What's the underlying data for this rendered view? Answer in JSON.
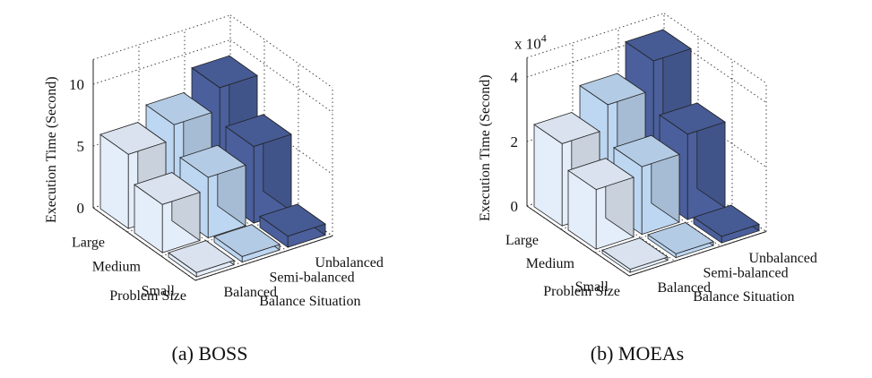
{
  "chart_data": [
    {
      "type": "bar3d",
      "caption": "(a) BOSS",
      "zlabel": "Execution Time (Second)",
      "zticks": [
        "0",
        "5",
        "10"
      ],
      "zlim": [
        0,
        12
      ],
      "problem_size_label": "Problem Size",
      "problem_sizes": [
        "Large",
        "Medium",
        "Small"
      ],
      "balance_label": "Balance Situation",
      "balance_situations": [
        "Balanced",
        "Semi-balanced",
        "Unbalanced"
      ],
      "series": [
        {
          "name": "Balanced",
          "values": [
            6.0,
            3.9,
            0.35
          ]
        },
        {
          "name": "Semi-balanced",
          "values": [
            7.2,
            4.9,
            0.45
          ]
        },
        {
          "name": "Unbalanced",
          "values": [
            9.0,
            6.2,
            0.9
          ]
        }
      ]
    },
    {
      "type": "bar3d",
      "caption": "(b) MOEAs",
      "zlabel": "Execution Time (Second)",
      "zticks": [
        "0",
        "2",
        "4"
      ],
      "multiplier": "x 10",
      "multiplier_exp": "4",
      "zlim": [
        0,
        4.6
      ],
      "problem_size_label": "Problem Size",
      "problem_sizes": [
        "Large",
        "Medium",
        "Small"
      ],
      "balance_label": "Balance Situation",
      "balance_situations": [
        "Balanced",
        "Semi-balanced",
        "Unbalanced"
      ],
      "series": [
        {
          "name": "Balanced",
          "values": [
            2.55,
            1.85,
            0.1
          ]
        },
        {
          "name": "Semi-balanced",
          "values": [
            3.3,
            2.1,
            0.12
          ]
        },
        {
          "name": "Unbalanced",
          "values": [
            4.2,
            2.65,
            0.2
          ]
        }
      ]
    }
  ],
  "colors": {
    "balanced": "#e4eefa",
    "semi_balanced": "#bdd6f1",
    "unbalanced": "#4a5f9c"
  }
}
